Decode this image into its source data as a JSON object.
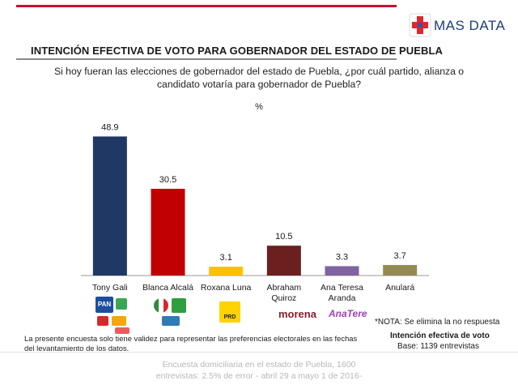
{
  "brand": {
    "logo_text": "MAS DATA",
    "colors": {
      "red": "#e3262d",
      "blue": "#2a5ba8"
    }
  },
  "header": {
    "title": "INTENCIÓN EFECTIVA DE VOTO PARA GOBERNADOR DEL ESTADO DE PUEBLA",
    "question": "Si hoy fueran las elecciones de gobernador del estado de Puebla, ¿por cuál partido, alianza o candidato votaría para gobernador de Puebla?"
  },
  "chart_data": {
    "type": "bar",
    "title": "",
    "unit_label": "%",
    "categories": [
      [
        "Tony Gali"
      ],
      [
        "Blanca Alcalá"
      ],
      [
        "Roxana Luna"
      ],
      [
        "Abraham",
        "Quiroz"
      ],
      [
        "Ana Teresa",
        "Aranda"
      ],
      [
        "Anulará"
      ]
    ],
    "values": [
      48.9,
      30.5,
      3.1,
      10.5,
      3.3,
      3.7
    ],
    "data_labels": [
      "48.9",
      "30.5",
      "3.1",
      "10.5",
      "3.3",
      "3.7"
    ],
    "colors": [
      "#1f3864",
      "#c00000",
      "#ffc000",
      "#6b1f1f",
      "#8064a2",
      "#948a54"
    ],
    "ylim": [
      0,
      55
    ],
    "grid": false,
    "legend": "none"
  },
  "party_marks": {
    "pan": "PAN",
    "prd": "PRD",
    "morena": "morena",
    "anatere": "AnaTere"
  },
  "notes": {
    "nota": "*NOTA: Se elimina la no respuesta",
    "intencion": "Intención efectiva de voto",
    "base": "Base: 1139 entrevistas",
    "disclaimer": "La presente encuesta solo tiene validez para representar las preferencias electorales en las fechas del levantamiento de los datos."
  },
  "footer": {
    "line1": "Encuesta domiciliaria en el estado de Puebla, 1600",
    "line2": "entrevistas: 2.5% de error - abril 29 a mayo 1 de 2016-"
  }
}
